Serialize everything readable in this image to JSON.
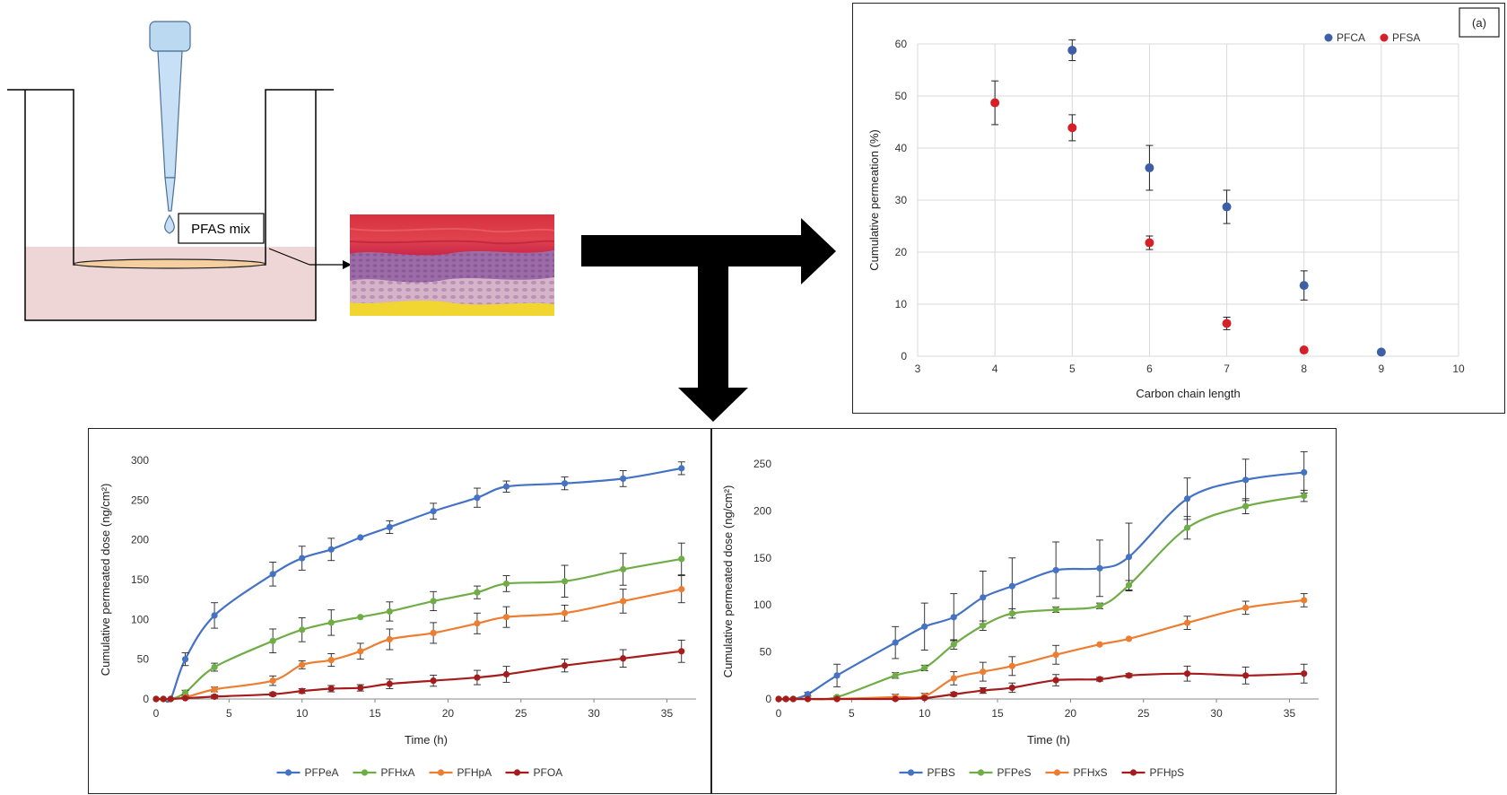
{
  "schematic": {
    "label": "PFAS mix"
  },
  "colors": {
    "pfca": "#3e5fa5",
    "pfsa": "#d61f26",
    "blue": "#4472c4",
    "green": "#70ad47",
    "orange": "#ed7d31",
    "darkred": "#a51c1c"
  },
  "chart_data": [
    {
      "id": "a",
      "type": "scatter",
      "panel_label": "(a)",
      "xlabel": "Carbon chain length",
      "ylabel": "Cumulative permeation (%)",
      "xlim": [
        3,
        10
      ],
      "ylim": [
        0,
        60
      ],
      "xticks": [
        3,
        4,
        5,
        6,
        7,
        8,
        9,
        10
      ],
      "yticks": [
        0,
        10,
        20,
        30,
        40,
        50,
        60
      ],
      "grid": true,
      "legend_position": "top-right",
      "series": [
        {
          "name": "PFCA",
          "color": "#3e5fa5",
          "x": [
            5,
            6,
            7,
            8,
            9
          ],
          "y": [
            58.8,
            36.2,
            28.7,
            13.6,
            0.8
          ],
          "err": [
            2.0,
            4.3,
            3.2,
            2.8,
            0.3
          ]
        },
        {
          "name": "PFSA",
          "color": "#d61f26",
          "x": [
            4,
            5,
            6,
            7,
            8
          ],
          "y": [
            48.7,
            43.9,
            21.8,
            6.3,
            1.2
          ],
          "err": [
            4.2,
            2.5,
            1.3,
            1.2,
            0.3
          ]
        }
      ]
    },
    {
      "id": "b",
      "type": "line",
      "xlabel": "Time (h)",
      "ylabel": "Cumulative permeated dose (ng/cm²)",
      "xlim": [
        0,
        37
      ],
      "ylim": [
        0,
        300
      ],
      "xticks": [
        0,
        5,
        10,
        15,
        20,
        25,
        30,
        35
      ],
      "yticks": [
        0,
        50,
        100,
        150,
        200,
        250,
        300
      ],
      "grid": false,
      "legend_position": "bottom",
      "x": [
        0,
        0.5,
        1,
        2,
        4,
        8,
        10,
        12,
        14,
        16,
        19,
        22,
        24,
        28,
        32,
        36
      ],
      "series": [
        {
          "name": "PFPeA",
          "color": "#4472c4",
          "values": [
            0,
            0,
            0,
            50,
            105,
            157,
            177,
            188,
            203,
            216,
            236,
            253,
            267,
            271,
            277,
            290
          ],
          "err": [
            0,
            0,
            0,
            8,
            16,
            15,
            15,
            14,
            10,
            8,
            10,
            12,
            7,
            8,
            10,
            8
          ],
          "skip_err": [
            8
          ]
        },
        {
          "name": "PFHxA",
          "color": "#70ad47",
          "values": [
            0,
            0,
            0,
            8,
            40,
            73,
            87,
            96,
            103,
            110,
            123,
            134,
            145,
            148,
            163,
            176
          ],
          "err": [
            0,
            0,
            0,
            3,
            5,
            15,
            15,
            16,
            12,
            12,
            12,
            8,
            10,
            20,
            20,
            20
          ],
          "skip_err": [
            8
          ]
        },
        {
          "name": "PFHpA",
          "color": "#ed7d31",
          "values": [
            0,
            0,
            0,
            2,
            12,
            23,
            43,
            49,
            60,
            75,
            83,
            95,
            103,
            108,
            123,
            138
          ],
          "err": [
            0,
            0,
            0,
            1,
            3,
            6,
            5,
            8,
            10,
            13,
            13,
            13,
            13,
            10,
            15,
            17
          ],
          "skip_err": []
        },
        {
          "name": "PFOA",
          "color": "#a51c1c",
          "values": [
            0,
            0,
            0,
            1,
            3,
            6,
            10,
            13,
            14,
            19,
            23,
            27,
            31,
            42,
            51,
            60
          ],
          "err": [
            0,
            0,
            0,
            1,
            2,
            2,
            3,
            4,
            4,
            6,
            7,
            9,
            10,
            8,
            11,
            14
          ],
          "skip_err": []
        }
      ]
    },
    {
      "id": "c",
      "type": "line",
      "xlabel": "Time (h)",
      "ylabel": "Cumulative permeated dose (ng/cm²)",
      "xlim": [
        0,
        37
      ],
      "ylim": [
        0,
        250
      ],
      "xticks": [
        0,
        5,
        10,
        15,
        20,
        25,
        30,
        35
      ],
      "yticks": [
        0,
        50,
        100,
        150,
        200,
        250
      ],
      "grid": false,
      "legend_position": "bottom",
      "x": [
        0,
        0.5,
        1,
        2,
        4,
        8,
        10,
        12,
        14,
        16,
        19,
        22,
        24,
        28,
        32,
        36
      ],
      "series": [
        {
          "name": "PFBS",
          "color": "#4472c4",
          "values": [
            0,
            0,
            0,
            5,
            25,
            60,
            77,
            87,
            108,
            120,
            137,
            139,
            151,
            213,
            233,
            241
          ],
          "err": [
            0,
            0,
            0,
            2,
            12,
            17,
            25,
            25,
            28,
            30,
            30,
            30,
            36,
            22,
            22,
            22
          ],
          "skip_err": []
        },
        {
          "name": "PFPeS",
          "color": "#70ad47",
          "values": [
            0,
            0,
            0,
            0,
            2,
            25,
            33,
            58,
            78,
            91,
            95,
            99,
            121,
            182,
            205,
            216
          ],
          "err": [
            0,
            0,
            0,
            0,
            1,
            3,
            3,
            5,
            5,
            5,
            3,
            3,
            5,
            12,
            8,
            6
          ],
          "skip_err": []
        },
        {
          "name": "PFHxS",
          "color": "#ed7d31",
          "values": [
            0,
            0,
            0,
            0,
            0,
            2,
            3,
            22,
            29,
            35,
            47,
            58,
            64,
            81,
            97,
            105
          ],
          "err": [
            0,
            0,
            0,
            0,
            0,
            3,
            3,
            7,
            10,
            10,
            10,
            0,
            0,
            7,
            7,
            7
          ],
          "skip_err": [
            11,
            12
          ]
        },
        {
          "name": "PFHpS",
          "color": "#a51c1c",
          "values": [
            0,
            0,
            0,
            0,
            0,
            0,
            1,
            5,
            9,
            12,
            20,
            21,
            25,
            27,
            25,
            27
          ],
          "err": [
            0,
            0,
            0,
            0,
            0,
            0,
            1,
            2,
            3,
            5,
            6,
            2,
            2,
            8,
            9,
            10
          ],
          "skip_err": []
        }
      ]
    }
  ]
}
